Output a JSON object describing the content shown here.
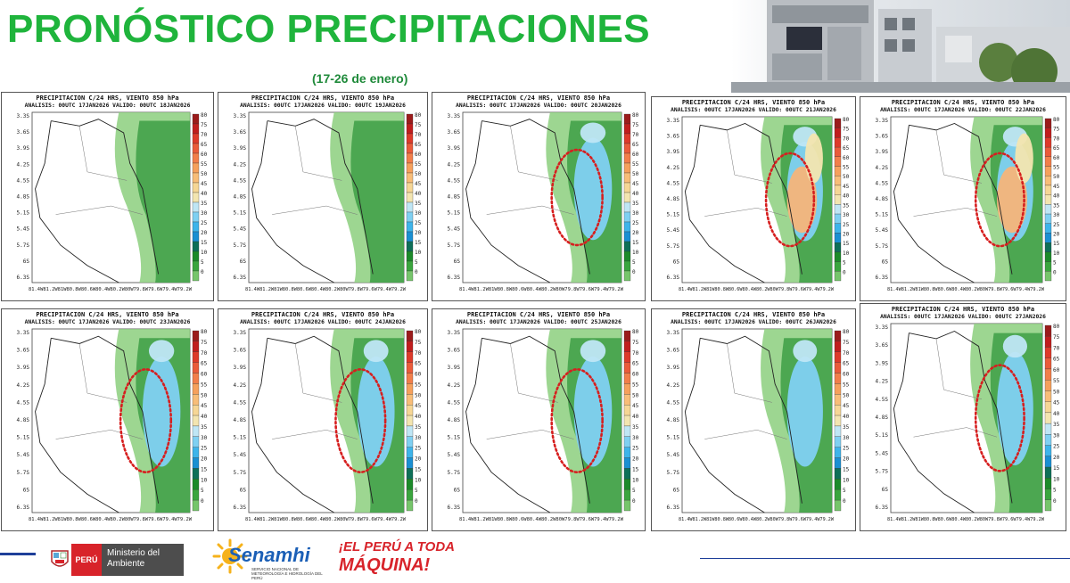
{
  "header": {
    "title": "PRONÓSTICO PRECIPITACIONES",
    "subtitle": "(17-26 de enero)"
  },
  "colorbar": {
    "labels": [
      "80",
      "75",
      "70",
      "65",
      "60",
      "55",
      "50",
      "45",
      "40",
      "35",
      "30",
      "25",
      "20",
      "15",
      "10",
      "5",
      "0"
    ],
    "colors": [
      "#9b1b1b",
      "#c01d1d",
      "#dd3a2a",
      "#ea5b3a",
      "#f27e4a",
      "#f6a05c",
      "#f8bd78",
      "#f6d695",
      "#f3e5b0",
      "#bfe6f5",
      "#7fd0f2",
      "#3eb4ea",
      "#1a8fd2",
      "#0e6f58",
      "#1c8a2a",
      "#3aa53e",
      "#76c56b"
    ]
  },
  "panels": [
    {
      "title": "PRECIPITACION C/24 HRS, VIENTO 850 hPa",
      "subtitle": "ANALISIS: 00UTC 17JAN2026 VALIDO: 00UTC 18JAN2026",
      "ylabels": [
        "3.3S",
        "3.6S",
        "3.9S",
        "4.2S",
        "4.5S",
        "4.8S",
        "5.1S",
        "5.4S",
        "5.7S",
        "6S",
        "6.3S"
      ],
      "xlabels": "81.4W81.2W81W80.8W80.6W80.4W80.2W80W79.8W79.6W79.4W79.2W",
      "highlight": false,
      "intensity": 1
    },
    {
      "title": "PRECIPITACION C/24 HRS, VIENTO 850 hPa",
      "subtitle": "ANALISIS: 00UTC 17JAN2026 VALIDO: 00UTC 19JAN2026",
      "ylabels": [
        "3.3S",
        "3.6S",
        "3.9S",
        "4.2S",
        "4.5S",
        "4.8S",
        "5.1S",
        "5.4S",
        "5.7S",
        "6S",
        "6.3S"
      ],
      "xlabels": "81.4W81.2W81W80.8W80.6W80.4W80.2W80W79.8W79.6W79.4W79.2W",
      "highlight": false,
      "intensity": 1
    },
    {
      "title": "PRECIPITACION C/24 HRS, VIENTO 850 hPa",
      "subtitle": "ANALISIS: 00UTC 17JAN2026 VALIDO: 00UTC 20JAN2026",
      "ylabels": [
        "3.3S",
        "3.6S",
        "3.9S",
        "4.2S",
        "4.5S",
        "4.8S",
        "5.1S",
        "5.4S",
        "5.7S",
        "6S",
        "6.3S"
      ],
      "xlabels": "81.4W81.2W81W80.8W80.6W80.4W80.2W80W79.8W79.6W79.4W79.2W",
      "highlight": true,
      "intensity": 2
    },
    {
      "title": "PRECIPITACION C/24 HRS, VIENTO 850 hPa",
      "subtitle": "ANALISIS: 00UTC 17JAN2026 VALIDO: 00UTC 21JAN2026",
      "ylabels": [
        "3.3S",
        "3.6S",
        "3.9S",
        "4.2S",
        "4.5S",
        "4.8S",
        "5.1S",
        "5.4S",
        "5.7S",
        "6S",
        "6.3S"
      ],
      "xlabels": "81.4W81.2W81W80.8W80.6W80.4W80.2W80W79.8W79.6W79.4W79.2W",
      "highlight": true,
      "intensity": 3
    },
    {
      "title": "PRECIPITACION C/24 HRS, VIENTO 850 hPa",
      "subtitle": "ANALISIS: 00UTC 17JAN2026 VALIDO: 00UTC 22JAN2026",
      "ylabels": [
        "3.3S",
        "3.6S",
        "3.9S",
        "4.2S",
        "4.5S",
        "4.8S",
        "5.1S",
        "5.4S",
        "5.7S",
        "6S",
        "6.3S"
      ],
      "xlabels": "81.4W81.2W81W80.8W80.6W80.4W80.2W80W79.8W79.6W79.4W79.2W",
      "highlight": true,
      "intensity": 3
    },
    {
      "title": "PRECIPITACION C/24 HRS, VIENTO 850 hPa",
      "subtitle": "ANALISIS: 00UTC 17JAN2026 VALIDO: 00UTC 23JAN2026",
      "ylabels": [
        "3.3S",
        "3.6S",
        "3.9S",
        "4.2S",
        "4.5S",
        "4.8S",
        "5.1S",
        "5.4S",
        "5.7S",
        "6S",
        "6.3S"
      ],
      "xlabels": "81.4W81.2W81W80.8W80.6W80.4W80.2W80W79.8W79.6W79.4W79.2W",
      "highlight": true,
      "intensity": 2
    },
    {
      "title": "PRECIPITACION C/24 HRS, VIENTO 850 hPa",
      "subtitle": "ANALISIS: 00UTC 17JAN2026 VALIDO: 00UTC 24JAN2026",
      "ylabels": [
        "3.3S",
        "3.6S",
        "3.9S",
        "4.2S",
        "4.5S",
        "4.8S",
        "5.1S",
        "5.4S",
        "5.7S",
        "6S",
        "6.3S"
      ],
      "xlabels": "81.4W81.2W81W80.8W80.6W80.4W80.2W80W79.8W79.6W79.4W79.2W",
      "highlight": true,
      "intensity": 2
    },
    {
      "title": "PRECIPITACION C/24 HRS, VIENTO 850 hPa",
      "subtitle": "ANALISIS: 00UTC 17JAN2026 VALIDO: 00UTC 25JAN2026",
      "ylabels": [
        "3.3S",
        "3.6S",
        "3.9S",
        "4.2S",
        "4.5S",
        "4.8S",
        "5.1S",
        "5.4S",
        "5.7S",
        "6S",
        "6.3S"
      ],
      "xlabels": "81.4W81.2W81W80.8W80.6W80.4W80.2W80W79.8W79.6W79.4W79.2W",
      "highlight": true,
      "intensity": 2
    },
    {
      "title": "PRECIPITACION C/24 HRS, VIENTO 850 hPa",
      "subtitle": "ANALISIS: 00UTC 17JAN2026 VALIDO: 00UTC 26JAN2026",
      "ylabels": [
        "3.3S",
        "3.6S",
        "3.9S",
        "4.2S",
        "4.5S",
        "4.8S",
        "5.1S",
        "5.4S",
        "5.7S",
        "6S",
        "6.3S"
      ],
      "xlabels": "81.4W81.2W81W80.8W80.6W80.4W80.2W80W79.8W79.6W79.4W79.2W",
      "highlight": false,
      "intensity": 2
    },
    {
      "title": "PRECIPITACION C/24 HRS, VIENTO 850 hPa",
      "subtitle": "ANALISIS: 00UTC 17JAN2026 VALIDO: 00UTC 27JAN2026",
      "ylabels": [
        "3.3S",
        "3.6S",
        "3.9S",
        "4.2S",
        "4.5S",
        "4.8S",
        "5.1S",
        "5.4S",
        "5.7S",
        "6S",
        "6.3S"
      ],
      "xlabels": "81.4W81.2W81W80.8W80.6W80.4W80.2W80W79.8W79.6W79.4W79.2W",
      "highlight": true,
      "intensity": 2
    }
  ],
  "footer": {
    "peru_label": "PERÚ",
    "ministerio_label": "Ministerio del Ambiente",
    "senamhi_label": "Senamhi",
    "senamhi_tagline": "SERVICIO NACIONAL DE METEOROLOGÍA E HIDROLOGÍA DEL PERÚ",
    "slogan_line1": "¡EL PERÚ A TODA",
    "slogan_line2": "MÁQUINA!"
  }
}
